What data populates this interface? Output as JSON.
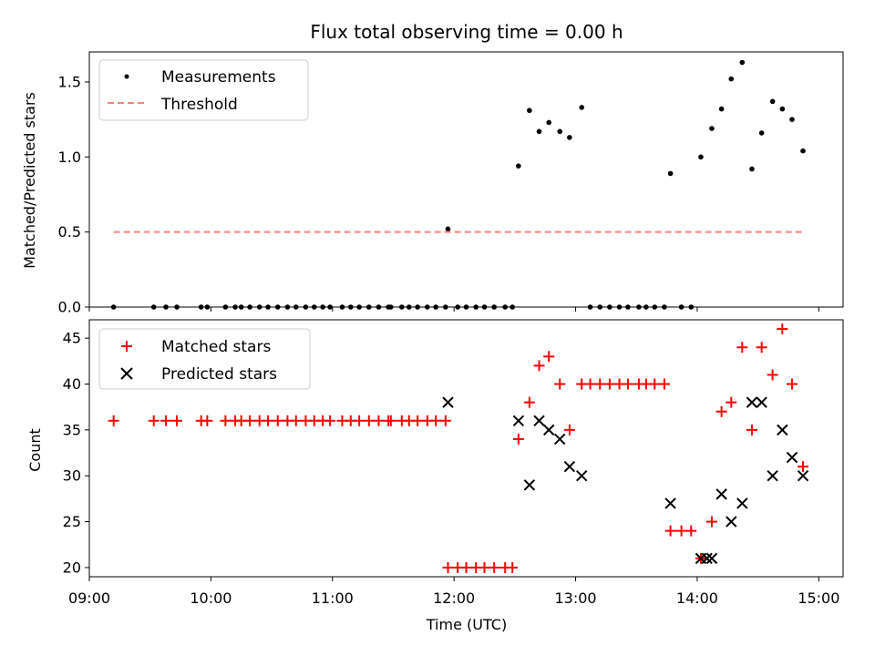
{
  "chart_data": [
    {
      "type": "scatter",
      "title": "Flux total observing time = 0.00 h",
      "xlabel": "",
      "ylabel": "Matched/Predicted stars",
      "xlim": [
        9.0,
        15.2
      ],
      "ylim": [
        0,
        1.7
      ],
      "yticks": [
        0.0,
        0.5,
        1.0,
        1.5
      ],
      "ytick_labels": [
        "0.0",
        "0.5",
        "1.0",
        "1.5"
      ],
      "legend": {
        "position": "top-left",
        "entries": [
          "Measurements",
          "Threshold"
        ]
      },
      "series": [
        {
          "name": "Measurements",
          "marker": "dot",
          "color": "#000000",
          "points": [
            [
              9.2,
              0
            ],
            [
              9.53,
              0
            ],
            [
              9.63,
              0
            ],
            [
              9.72,
              0
            ],
            [
              9.92,
              0
            ],
            [
              9.97,
              0
            ],
            [
              10.12,
              0
            ],
            [
              10.2,
              0
            ],
            [
              10.25,
              0
            ],
            [
              10.32,
              0
            ],
            [
              10.4,
              0
            ],
            [
              10.47,
              0
            ],
            [
              10.55,
              0
            ],
            [
              10.63,
              0
            ],
            [
              10.7,
              0
            ],
            [
              10.78,
              0
            ],
            [
              10.85,
              0
            ],
            [
              10.92,
              0
            ],
            [
              10.98,
              0
            ],
            [
              11.08,
              0
            ],
            [
              11.15,
              0
            ],
            [
              11.22,
              0
            ],
            [
              11.3,
              0
            ],
            [
              11.38,
              0
            ],
            [
              11.46,
              0
            ],
            [
              11.48,
              0
            ],
            [
              11.57,
              0
            ],
            [
              11.63,
              0
            ],
            [
              11.7,
              0
            ],
            [
              11.78,
              0
            ],
            [
              11.85,
              0
            ],
            [
              11.93,
              0
            ],
            [
              11.95,
              0.52
            ],
            [
              12.03,
              0
            ],
            [
              12.1,
              0
            ],
            [
              12.18,
              0
            ],
            [
              12.25,
              0
            ],
            [
              12.33,
              0
            ],
            [
              12.42,
              0
            ],
            [
              12.48,
              0
            ],
            [
              12.53,
              0.94
            ],
            [
              12.62,
              1.31
            ],
            [
              12.7,
              1.17
            ],
            [
              12.78,
              1.23
            ],
            [
              12.87,
              1.17
            ],
            [
              12.95,
              1.13
            ],
            [
              13.05,
              1.33
            ],
            [
              13.12,
              0
            ],
            [
              13.2,
              0
            ],
            [
              13.28,
              0
            ],
            [
              13.36,
              0
            ],
            [
              13.43,
              0
            ],
            [
              13.52,
              0
            ],
            [
              13.58,
              0
            ],
            [
              13.65,
              0
            ],
            [
              13.73,
              0
            ],
            [
              13.87,
              0
            ],
            [
              13.95,
              0
            ],
            [
              13.78,
              0.89
            ],
            [
              14.03,
              1.0
            ],
            [
              14.12,
              1.19
            ],
            [
              14.2,
              1.32
            ],
            [
              14.28,
              1.52
            ],
            [
              14.37,
              1.63
            ],
            [
              14.45,
              0.92
            ],
            [
              14.53,
              1.16
            ],
            [
              14.62,
              1.37
            ],
            [
              14.7,
              1.32
            ],
            [
              14.78,
              1.25
            ],
            [
              14.87,
              1.04
            ]
          ]
        },
        {
          "name": "Threshold",
          "marker": "dashed-line",
          "color": "#ff8080",
          "points": [
            [
              9.2,
              0.5
            ],
            [
              14.87,
              0.5
            ]
          ]
        }
      ]
    },
    {
      "type": "scatter",
      "title": "",
      "xlabel": "Time (UTC)",
      "ylabel": "Count",
      "xlim": [
        9.0,
        15.2
      ],
      "ylim": [
        19,
        47
      ],
      "yticks": [
        20,
        25,
        30,
        35,
        40,
        45
      ],
      "ytick_labels": [
        "20",
        "25",
        "30",
        "35",
        "40",
        "45"
      ],
      "xticks": [
        9,
        10,
        11,
        12,
        13,
        14,
        15
      ],
      "xtick_labels": [
        "09:00",
        "10:00",
        "11:00",
        "12:00",
        "13:00",
        "14:00",
        "15:00"
      ],
      "legend": {
        "position": "top-left",
        "entries": [
          "Matched stars",
          "Predicted stars"
        ]
      },
      "series": [
        {
          "name": "Matched stars",
          "marker": "plus",
          "color": "#ff0000",
          "points": [
            [
              9.2,
              36
            ],
            [
              9.53,
              36
            ],
            [
              9.63,
              36
            ],
            [
              9.72,
              36
            ],
            [
              9.92,
              36
            ],
            [
              9.97,
              36
            ],
            [
              10.12,
              36
            ],
            [
              10.2,
              36
            ],
            [
              10.25,
              36
            ],
            [
              10.32,
              36
            ],
            [
              10.4,
              36
            ],
            [
              10.47,
              36
            ],
            [
              10.55,
              36
            ],
            [
              10.63,
              36
            ],
            [
              10.7,
              36
            ],
            [
              10.78,
              36
            ],
            [
              10.85,
              36
            ],
            [
              10.92,
              36
            ],
            [
              10.98,
              36
            ],
            [
              11.08,
              36
            ],
            [
              11.15,
              36
            ],
            [
              11.22,
              36
            ],
            [
              11.3,
              36
            ],
            [
              11.38,
              36
            ],
            [
              11.46,
              36
            ],
            [
              11.48,
              36
            ],
            [
              11.57,
              36
            ],
            [
              11.63,
              36
            ],
            [
              11.7,
              36
            ],
            [
              11.78,
              36
            ],
            [
              11.85,
              36
            ],
            [
              11.93,
              36
            ],
            [
              11.95,
              20
            ],
            [
              12.03,
              20
            ],
            [
              12.1,
              20
            ],
            [
              12.18,
              20
            ],
            [
              12.25,
              20
            ],
            [
              12.33,
              20
            ],
            [
              12.42,
              20
            ],
            [
              12.48,
              20
            ],
            [
              12.53,
              34
            ],
            [
              12.62,
              38
            ],
            [
              12.7,
              42
            ],
            [
              12.78,
              43
            ],
            [
              12.87,
              40
            ],
            [
              12.95,
              35
            ],
            [
              13.05,
              40
            ],
            [
              13.12,
              40
            ],
            [
              13.2,
              40
            ],
            [
              13.28,
              40
            ],
            [
              13.36,
              40
            ],
            [
              13.43,
              40
            ],
            [
              13.52,
              40
            ],
            [
              13.58,
              40
            ],
            [
              13.65,
              40
            ],
            [
              13.73,
              40
            ],
            [
              13.78,
              24
            ],
            [
              13.87,
              24
            ],
            [
              13.95,
              24
            ],
            [
              14.03,
              21
            ],
            [
              14.12,
              25
            ],
            [
              14.2,
              37
            ],
            [
              14.28,
              38
            ],
            [
              14.37,
              44
            ],
            [
              14.45,
              35
            ],
            [
              14.53,
              44
            ],
            [
              14.62,
              41
            ],
            [
              14.7,
              46
            ],
            [
              14.78,
              40
            ],
            [
              14.87,
              31
            ]
          ]
        },
        {
          "name": "Predicted stars",
          "marker": "x",
          "color": "#000000",
          "points": [
            [
              11.95,
              38
            ],
            [
              12.53,
              36
            ],
            [
              12.62,
              29
            ],
            [
              12.7,
              36
            ],
            [
              12.78,
              35
            ],
            [
              12.87,
              34
            ],
            [
              12.95,
              31
            ],
            [
              13.05,
              30
            ],
            [
              13.78,
              27
            ],
            [
              14.03,
              21
            ],
            [
              14.08,
              21
            ],
            [
              14.12,
              21
            ],
            [
              14.2,
              28
            ],
            [
              14.28,
              25
            ],
            [
              14.37,
              27
            ],
            [
              14.45,
              38
            ],
            [
              14.53,
              38
            ],
            [
              14.62,
              30
            ],
            [
              14.7,
              35
            ],
            [
              14.78,
              32
            ],
            [
              14.87,
              30
            ]
          ]
        }
      ]
    }
  ]
}
